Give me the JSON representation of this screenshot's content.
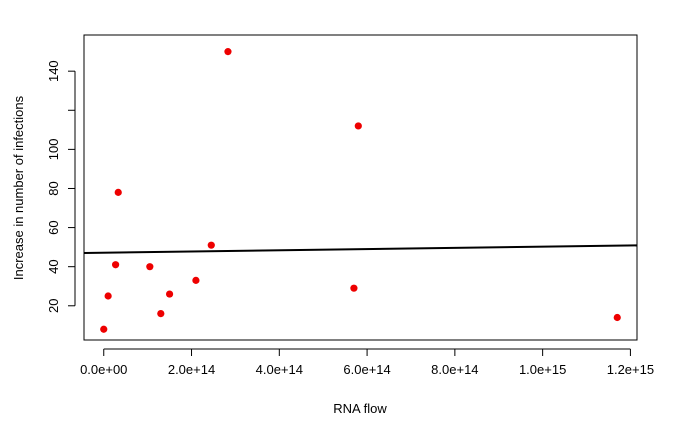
{
  "chart_data": {
    "type": "scatter",
    "title": "",
    "xlabel": "RNA flow",
    "ylabel": "Increase in number of infections",
    "xlim": [
      -45000000000000.0,
      1215000000000000.0
    ],
    "ylim": [
      2.5,
      158.5
    ],
    "x_ticks": [
      0,
      200000000000000.0,
      400000000000000.0,
      600000000000000.0,
      800000000000000.0,
      1000000000000000.0,
      1200000000000000.0
    ],
    "x_tick_labels": [
      "0.0e+00",
      "2.0e+14",
      "4.0e+14",
      "6.0e+14",
      "8.0e+14",
      "1.0e+15",
      "1.2e+15"
    ],
    "y_ticks": [
      20,
      40,
      60,
      80,
      100,
      140
    ],
    "y_tick_labels": [
      "20",
      "40",
      "60",
      "80",
      "100",
      "140"
    ],
    "y_minor_ticks": [
      120
    ],
    "grid": false,
    "point_color": "#ee0000",
    "line_color": "#000000",
    "points": [
      {
        "x": 0,
        "y": 8
      },
      {
        "x": 10000000000000.0,
        "y": 25
      },
      {
        "x": 27000000000000.0,
        "y": 41
      },
      {
        "x": 33000000000000.0,
        "y": 78
      },
      {
        "x": 105000000000000.0,
        "y": 40
      },
      {
        "x": 130000000000000.0,
        "y": 16
      },
      {
        "x": 150000000000000.0,
        "y": 26
      },
      {
        "x": 210000000000000.0,
        "y": 33
      },
      {
        "x": 245000000000000.0,
        "y": 51
      },
      {
        "x": 283000000000000.0,
        "y": 150
      },
      {
        "x": 570000000000000.0,
        "y": 29
      },
      {
        "x": 580000000000000.0,
        "y": 112
      },
      {
        "x": 1170000000000000.0,
        "y": 14
      }
    ],
    "trend_line": {
      "x": [
        -45000000000000.0,
        1215000000000000.0
      ],
      "y": [
        47.0,
        50.9
      ]
    }
  }
}
